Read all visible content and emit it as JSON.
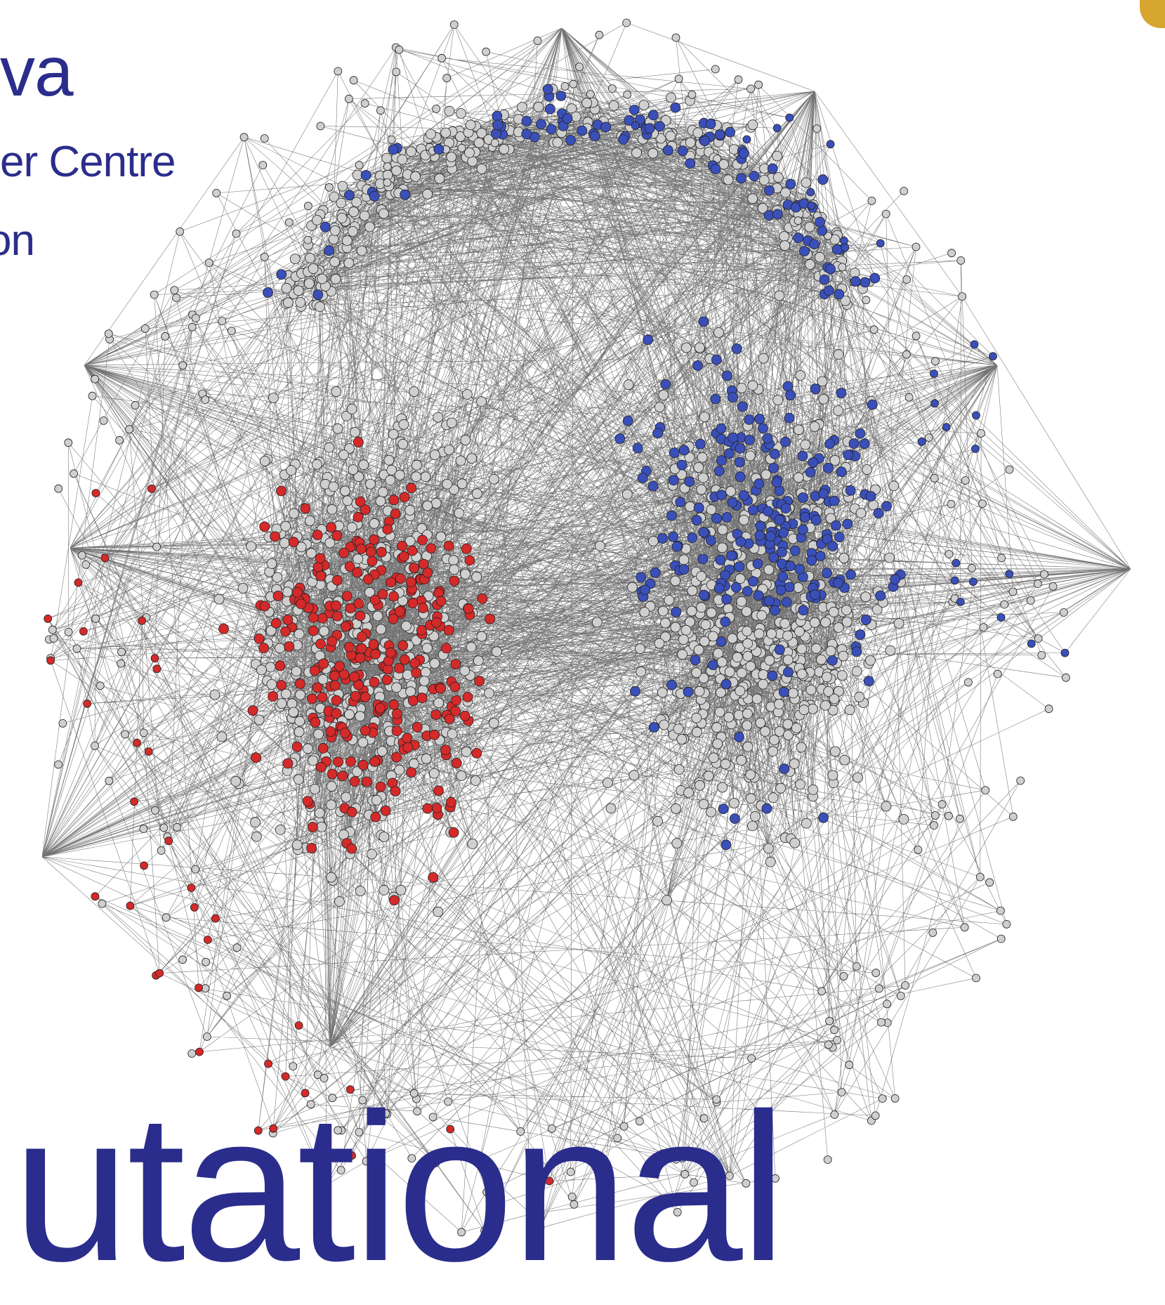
{
  "texts": {
    "line1": "va",
    "line2": "er Centre",
    "line3": "on",
    "big": "utational"
  },
  "colors": {
    "text": "#2b2d8c",
    "node_gray": "#cfcfcf",
    "node_red": "#d42a2a",
    "node_blue": "#3a4fb8",
    "edge": "#000000",
    "accent": "#d7a62f"
  }
}
